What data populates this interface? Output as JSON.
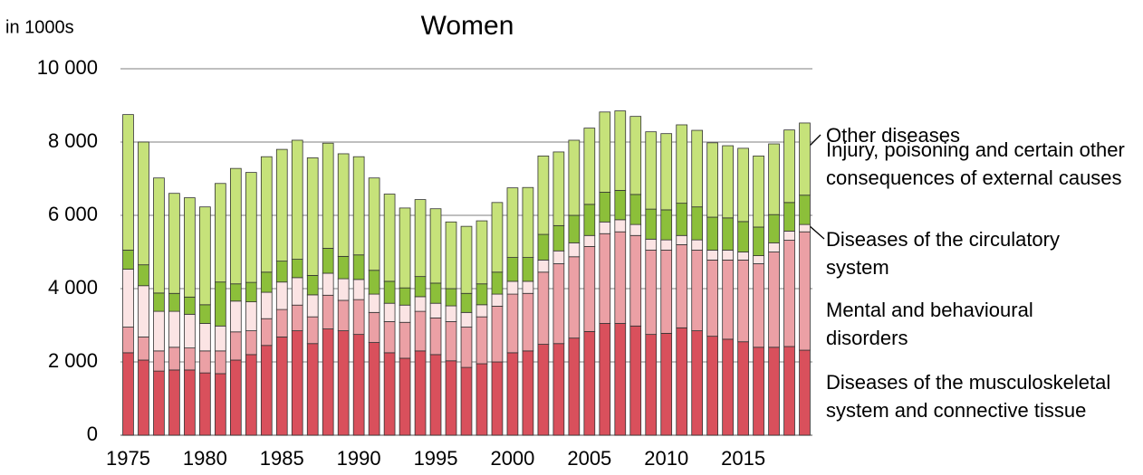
{
  "chart_data": {
    "type": "bar",
    "stacked": true,
    "title": "Women",
    "y_label": "in 1000s",
    "x": [
      1975,
      1976,
      1977,
      1978,
      1979,
      1980,
      1981,
      1982,
      1983,
      1984,
      1985,
      1986,
      1987,
      1988,
      1989,
      1990,
      1991,
      1992,
      1993,
      1994,
      1995,
      1996,
      1997,
      1998,
      1999,
      2000,
      2001,
      2002,
      2003,
      2004,
      2005,
      2006,
      2007,
      2008,
      2009,
      2010,
      2011,
      2012,
      2013,
      2014,
      2015,
      2016,
      2017,
      2018,
      2019
    ],
    "xlim": [
      1974.5,
      2019.5
    ],
    "xticks": [
      1975,
      1980,
      1985,
      1990,
      1995,
      2000,
      2005,
      2010,
      2015
    ],
    "ylim": [
      0,
      10000
    ],
    "yticks": [
      0,
      {
        "value": 2000,
        "label": "2 000"
      },
      {
        "value": 4000,
        "label": "4 000"
      },
      {
        "value": 6000,
        "label": "6 000"
      },
      {
        "value": 8000,
        "label": "8 000"
      },
      {
        "value": 10000,
        "label": "10 000"
      }
    ],
    "grid": true,
    "series": [
      {
        "name": "Diseases of the musculoskeletal system and connective tissue",
        "color": "#d9505c",
        "values": [
          2250,
          2050,
          1750,
          1780,
          1780,
          1700,
          1680,
          2050,
          2200,
          2450,
          2680,
          2850,
          2500,
          2900,
          2850,
          2750,
          2530,
          2250,
          2100,
          2300,
          2200,
          2030,
          1850,
          1950,
          2000,
          2250,
          2300,
          2480,
          2500,
          2650,
          2830,
          3050,
          3050,
          2980,
          2750,
          2780,
          2930,
          2850,
          2700,
          2620,
          2550,
          2400,
          2400,
          2420,
          2320
        ]
      },
      {
        "name": "Mental and behavioural disorders",
        "color": "#eba0a5",
        "values": [
          700,
          630,
          550,
          620,
          600,
          600,
          620,
          770,
          650,
          730,
          750,
          700,
          730,
          920,
          830,
          950,
          820,
          850,
          980,
          1080,
          1000,
          1070,
          1100,
          1280,
          1520,
          1600,
          1570,
          1970,
          2180,
          2220,
          2320,
          2450,
          2500,
          2470,
          2300,
          2270,
          2270,
          2200,
          2080,
          2160,
          2230,
          2280,
          2600,
          2900,
          3230
        ]
      },
      {
        "name": "Diseases of the circulatory system",
        "color": "#fbe4e4",
        "values": [
          1580,
          1400,
          1080,
          980,
          920,
          750,
          680,
          840,
          790,
          720,
          750,
          750,
          600,
          600,
          590,
          550,
          500,
          500,
          470,
          400,
          400,
          430,
          400,
          330,
          330,
          350,
          330,
          330,
          350,
          380,
          300,
          320,
          330,
          300,
          300,
          280,
          250,
          280,
          270,
          270,
          220,
          220,
          250,
          250,
          200
        ]
      },
      {
        "name": "Injury, poisoning and certain other consequences of external causes",
        "color": "#8cbf3a",
        "values": [
          520,
          570,
          500,
          490,
          470,
          510,
          1200,
          470,
          530,
          550,
          570,
          500,
          530,
          680,
          610,
          670,
          650,
          600,
          470,
          550,
          550,
          470,
          520,
          570,
          600,
          650,
          650,
          700,
          690,
          750,
          850,
          810,
          800,
          820,
          820,
          820,
          880,
          900,
          900,
          880,
          830,
          780,
          770,
          780,
          800
        ]
      },
      {
        "name": "Other diseases",
        "color": "#c6e27a",
        "values": [
          3700,
          3350,
          3140,
          2730,
          2710,
          2670,
          2690,
          3150,
          3000,
          3150,
          3050,
          3250,
          3210,
          2870,
          2800,
          2680,
          2520,
          2380,
          2180,
          2100,
          2030,
          1820,
          1830,
          1720,
          1900,
          1900,
          1910,
          2140,
          2010,
          2050,
          2080,
          2190,
          2170,
          2130,
          2110,
          2080,
          2140,
          2090,
          2030,
          1970,
          2000,
          1940,
          1930,
          1980,
          1970
        ]
      }
    ]
  }
}
